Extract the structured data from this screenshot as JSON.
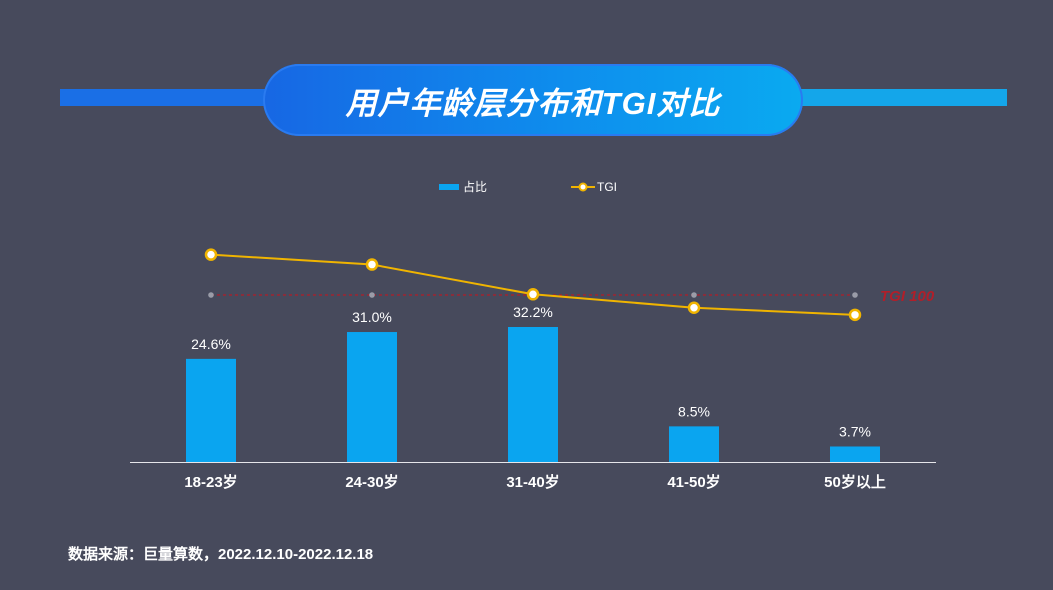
{
  "title": "用户年龄层分布和TGI对比",
  "source": "数据来源：巨量算数，2022.12.10-2022.12.18",
  "colors": {
    "bar": "#0aa5f0",
    "line": "#f0b400",
    "reference": "#b01f2a",
    "background": "#474a5c"
  },
  "chart_data": {
    "type": "bar",
    "categories": [
      "18-23岁",
      "24-30岁",
      "31-40岁",
      "41-50岁",
      "50岁以上"
    ],
    "series": [
      {
        "name": "占比",
        "type": "bar",
        "values": [
          24.6,
          31.0,
          32.2,
          8.5,
          3.7
        ],
        "labels": [
          "24.6%",
          "31.0%",
          "32.2%",
          "8.5%",
          "3.7%"
        ]
      },
      {
        "name": "TGI",
        "type": "line",
        "values": [
          157,
          143,
          101,
          82,
          72
        ]
      }
    ],
    "reference_line": {
      "value": 100,
      "label": "TGI 100"
    },
    "legend_position": "top-center",
    "grid": false
  }
}
